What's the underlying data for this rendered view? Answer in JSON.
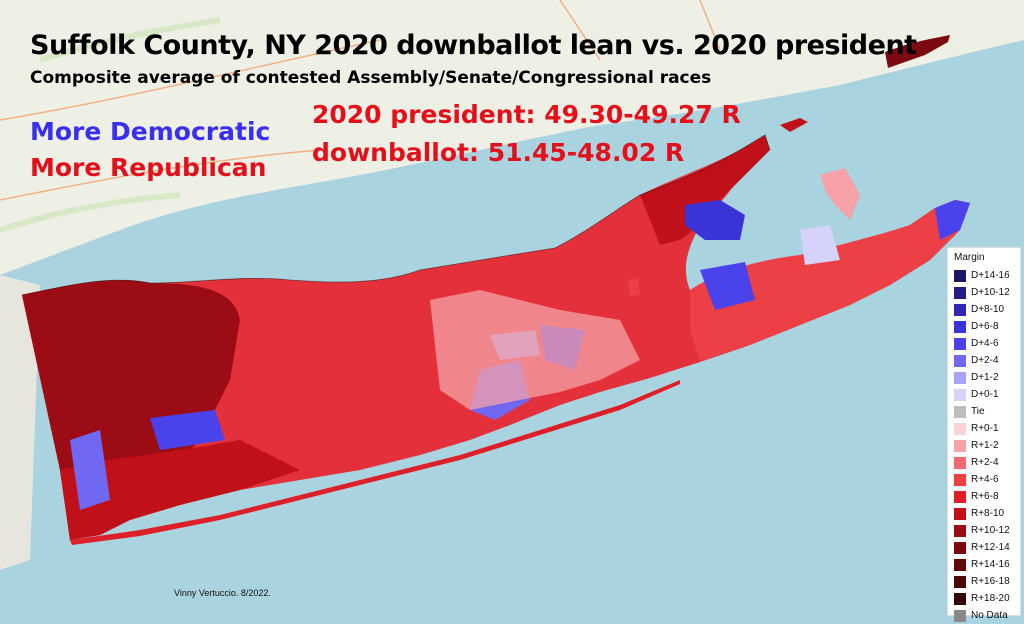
{
  "title": "Suffolk County, NY 2020 downballot lean vs. 2020 president",
  "subtitle": "Composite average of contested Assembly/Senate/Congressional races",
  "key": {
    "more_dem": "More Democratic",
    "more_rep": "More Republican"
  },
  "results": {
    "president": "2020 president: 49.30-49.27 R",
    "downballot": "downballot: 51.45-48.02 R"
  },
  "credit": "Vinny Vertuccio. 8/2022.",
  "legend": {
    "title": "Margin",
    "items": [
      {
        "label": "D+14-16",
        "color": "#1b1663"
      },
      {
        "label": "D+10-12",
        "color": "#231d85"
      },
      {
        "label": "D+8-10",
        "color": "#2e28b3"
      },
      {
        "label": "D+6-8",
        "color": "#3a33d6"
      },
      {
        "label": "D+4-6",
        "color": "#4a43ec"
      },
      {
        "label": "D+2-4",
        "color": "#7068f2"
      },
      {
        "label": "D+1-2",
        "color": "#a7a2f6"
      },
      {
        "label": "D+0-1",
        "color": "#d6d3fb"
      },
      {
        "label": "Tie",
        "color": "#bdbdbd"
      },
      {
        "label": "R+0-1",
        "color": "#fbd3d6"
      },
      {
        "label": "R+1-2",
        "color": "#f6a2a8"
      },
      {
        "label": "R+2-4",
        "color": "#f2686f"
      },
      {
        "label": "R+4-6",
        "color": "#ec3f46"
      },
      {
        "label": "R+6-8",
        "color": "#de1f27"
      },
      {
        "label": "R+8-10",
        "color": "#c0111a"
      },
      {
        "label": "R+10-12",
        "color": "#9c0c14"
      },
      {
        "label": "R+12-14",
        "color": "#7c0a10"
      },
      {
        "label": "R+14-16",
        "color": "#610a0e"
      },
      {
        "label": "R+16-18",
        "color": "#4a080b"
      },
      {
        "label": "R+18-20",
        "color": "#330608"
      },
      {
        "label": "No Data",
        "color": "#8a8a8a"
      }
    ]
  }
}
